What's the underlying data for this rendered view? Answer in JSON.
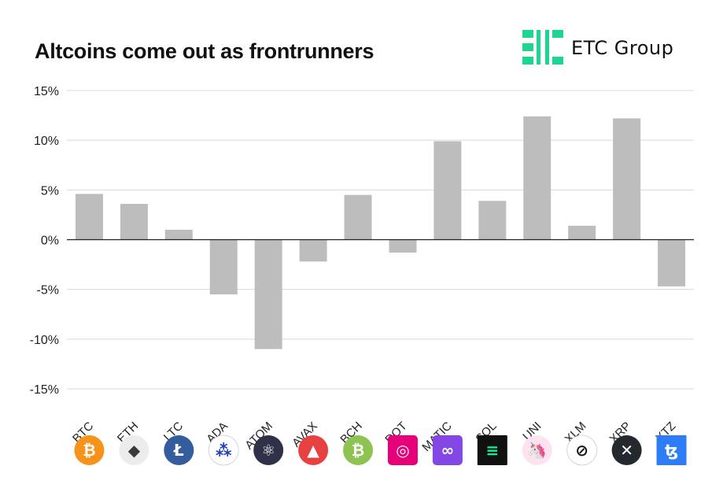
{
  "brand": {
    "name": "ETC Group",
    "logo_color": "#1ed491"
  },
  "chart_data": {
    "type": "bar",
    "title": "Altcoins come out as frontrunners",
    "xlabel": "",
    "ylabel": "",
    "categories": [
      "BTC",
      "ETH",
      "LTC",
      "ADA",
      "ATOM",
      "AVAX",
      "BCH",
      "DOT",
      "MATIC",
      "SOL",
      "UNI",
      "XLM",
      "XRP",
      "XTZ"
    ],
    "values": [
      4.6,
      3.6,
      1.0,
      -5.5,
      -11.0,
      -2.2,
      4.5,
      -1.3,
      9.9,
      3.9,
      12.4,
      1.4,
      12.2,
      -4.7
    ],
    "ylim": [
      -15,
      15
    ],
    "yticks": [
      -15,
      -10,
      -5,
      0,
      5,
      10,
      15
    ],
    "ytick_labels": [
      "-15%",
      "-10%",
      "-5%",
      "0%",
      "5%",
      "10%",
      "15%"
    ],
    "bar_color": "#bdbdbd",
    "grid": true,
    "legend": "none",
    "category_icons": [
      {
        "name": "bitcoin-icon",
        "color": "#f7931a",
        "glyph": "₿",
        "shape": "circle",
        "fg": "#ffffff"
      },
      {
        "name": "ethereum-icon",
        "color": "#ececec",
        "glyph": "◆",
        "shape": "circle",
        "fg": "#3a3a3a"
      },
      {
        "name": "litecoin-icon",
        "color": "#345d9d",
        "glyph": "Ł",
        "shape": "circle",
        "fg": "#ffffff"
      },
      {
        "name": "cardano-icon",
        "color": "#ffffff",
        "glyph": "⁂",
        "shape": "circle",
        "fg": "#1f3fb3"
      },
      {
        "name": "cosmos-icon",
        "color": "#2e3148",
        "glyph": "⚛",
        "shape": "circle",
        "fg": "#ffffff"
      },
      {
        "name": "avalanche-icon",
        "color": "#e84142",
        "glyph": "▲",
        "shape": "circle",
        "fg": "#ffffff"
      },
      {
        "name": "bitcoin-cash-icon",
        "color": "#8dc351",
        "glyph": "₿",
        "shape": "circle",
        "fg": "#ffffff"
      },
      {
        "name": "polkadot-icon",
        "color": "#e6007a",
        "glyph": "◎",
        "shape": "rounded",
        "fg": "#ffffff"
      },
      {
        "name": "polygon-icon",
        "color": "#8247e5",
        "glyph": "∞",
        "shape": "rounded",
        "fg": "#ffffff"
      },
      {
        "name": "solana-icon",
        "color": "#111111",
        "glyph": "≡",
        "shape": "square",
        "fg": "#14f195"
      },
      {
        "name": "uniswap-icon",
        "color": "#fde3f0",
        "glyph": "🦄",
        "shape": "circle",
        "fg": "#ff007a"
      },
      {
        "name": "stellar-icon",
        "color": "#ffffff",
        "glyph": "⊘",
        "shape": "circle",
        "fg": "#111111"
      },
      {
        "name": "xrp-icon",
        "color": "#23292f",
        "glyph": "✕",
        "shape": "circle",
        "fg": "#ffffff"
      },
      {
        "name": "tezos-icon",
        "color": "#2c7df7",
        "glyph": "ꜩ",
        "shape": "square",
        "fg": "#ffffff"
      }
    ]
  }
}
